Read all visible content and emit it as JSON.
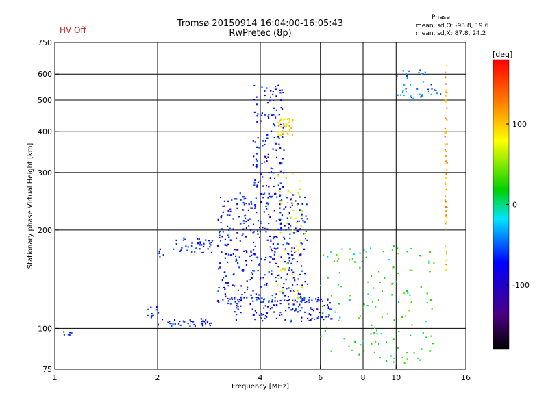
{
  "header": {
    "status": "HV Off",
    "title_line1": "Tromsø 20150914 16:04:00-16:05:43",
    "title_line2": "RwPretec (8p)",
    "phase_heading": "Phase",
    "phase_o": "mean, sd,O:  -93.8, 19.6",
    "phase_x": "mean, sd,X:  87.8, 24.2"
  },
  "colorbar": {
    "label": "[deg]",
    "ticks": [
      "100",
      "0",
      "-100"
    ],
    "range": [
      -180,
      180
    ]
  },
  "chart_data": {
    "type": "scatter",
    "title": "Tromsø 20150914 16:04:00-16:05:43",
    "subtitle": "RwPretec (8p)",
    "xlabel": "Frequency [MHz]",
    "ylabel": "Stationary phase Virtual Height [km]",
    "xscale": "log",
    "yscale": "log",
    "xlim": [
      1,
      16
    ],
    "ylim": [
      75,
      750
    ],
    "xticks": [
      "1",
      "2",
      "4",
      "6",
      "8",
      "10",
      "16"
    ],
    "yticks": [
      "75",
      "100",
      "200",
      "300",
      "400",
      "500",
      "600",
      "750"
    ],
    "xgrid": [
      2,
      4,
      6,
      8,
      10
    ],
    "ygrid": [
      100,
      200,
      300,
      400,
      500,
      600
    ],
    "color_variable": "phase [deg]",
    "clusters": [
      {
        "desc": "low E trace",
        "x": [
          1.05,
          1.12
        ],
        "y": [
          95,
          98
        ],
        "phase": -85,
        "n": 6
      },
      {
        "desc": "E layer",
        "x": [
          2.0,
          2.9
        ],
        "y": [
          101,
          107
        ],
        "phase": -90,
        "n": 40
      },
      {
        "desc": "Es step",
        "x": [
          1.85,
          2.05
        ],
        "y": [
          108,
          120
        ],
        "phase": -90,
        "n": 10
      },
      {
        "desc": "F1 rising",
        "x": [
          2.0,
          2.1
        ],
        "y": [
          165,
          175
        ],
        "phase": -95,
        "n": 6
      },
      {
        "desc": "F1 hump",
        "x": [
          2.2,
          2.9
        ],
        "y": [
          170,
          190
        ],
        "phase": -90,
        "n": 40
      },
      {
        "desc": "F2 O-trace",
        "x": [
          3.0,
          5.5
        ],
        "y": [
          120,
          260
        ],
        "phase": -95,
        "n": 400
      },
      {
        "desc": "F2 high",
        "x": [
          3.8,
          4.7
        ],
        "y": [
          250,
          560
        ],
        "phase": -95,
        "n": 140
      },
      {
        "desc": "X-trace green",
        "x": [
          4.5,
          5.4
        ],
        "y": [
          120,
          300
        ],
        "phase": 80,
        "n": 60
      },
      {
        "desc": "upper X cluster",
        "x": [
          4.5,
          5.0
        ],
        "y": [
          390,
          440
        ],
        "phase": 90,
        "n": 40
      },
      {
        "desc": "low spread",
        "x": [
          3.2,
          6.5
        ],
        "y": [
          105,
          125
        ],
        "phase": -95,
        "n": 140
      },
      {
        "desc": "mid freq scatter",
        "x": [
          6.0,
          13.0
        ],
        "y": [
          78,
          180
        ],
        "phase": 10,
        "n": 140
      },
      {
        "desc": "top right scatter",
        "x": [
          10.0,
          13.5
        ],
        "y": [
          500,
          620
        ],
        "phase": -60,
        "n": 40
      },
      {
        "desc": "vertical line",
        "x": [
          13.9,
          14.1
        ],
        "y": [
          150,
          640
        ],
        "phase": 110,
        "n": 60
      }
    ]
  }
}
